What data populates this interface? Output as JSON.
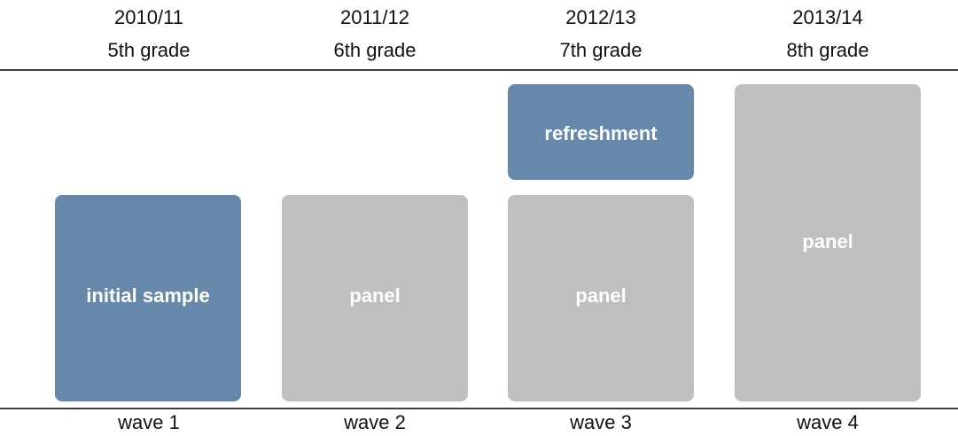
{
  "columns": [
    {
      "year": "2010/11",
      "grade": "5th grade",
      "wave": "wave 1",
      "blocks": [
        {
          "label": "initial sample"
        }
      ]
    },
    {
      "year": "2011/12",
      "grade": "6th grade",
      "wave": "wave 2",
      "blocks": [
        {
          "label": "panel"
        }
      ]
    },
    {
      "year": "2012/13",
      "grade": "7th grade",
      "wave": "wave 3",
      "blocks": [
        {
          "label": "refreshment"
        },
        {
          "label": "panel"
        }
      ]
    },
    {
      "year": "2013/14",
      "grade": "8th grade",
      "wave": "wave 4",
      "blocks": [
        {
          "label": "panel"
        }
      ]
    }
  ]
}
